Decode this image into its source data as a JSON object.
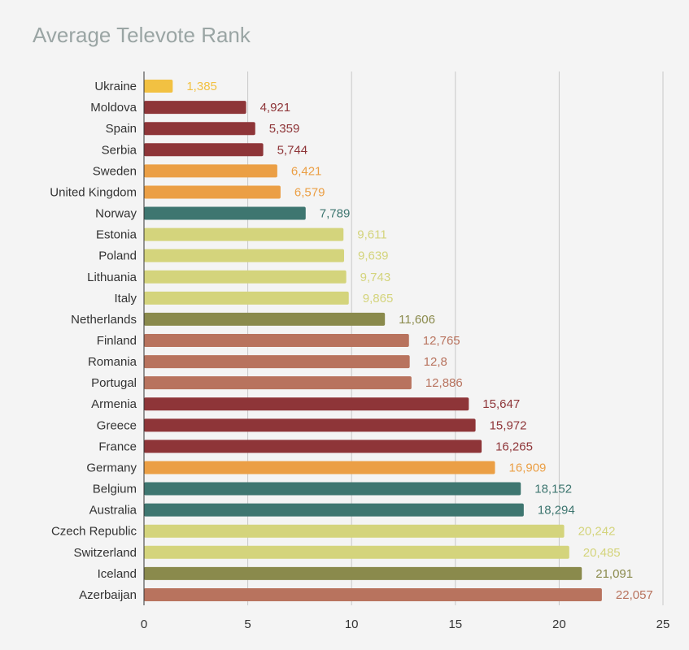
{
  "chart_data": {
    "type": "bar",
    "orientation": "horizontal",
    "title": "Average Televote Rank",
    "xlabel": "",
    "ylabel": "",
    "xlim": [
      0,
      25
    ],
    "xticks": [
      0,
      5,
      10,
      15,
      20,
      25
    ],
    "grid": "vertical",
    "categories": [
      "Ukraine",
      "Moldova",
      "Spain",
      "Serbia",
      "Sweden",
      "United Kingdom",
      "Norway",
      "Estonia",
      "Poland",
      "Lithuania",
      "Italy",
      "Netherlands",
      "Finland",
      "Romania",
      "Portugal",
      "Armenia",
      "Greece",
      "France",
      "Germany",
      "Belgium",
      "Australia",
      "Czech Republic",
      "Switzerland",
      "Iceland",
      "Azerbaijan"
    ],
    "values": [
      1.385,
      4.921,
      5.359,
      5.744,
      6.421,
      6.579,
      7.789,
      9.611,
      9.639,
      9.743,
      9.865,
      11.606,
      12.765,
      12.8,
      12.886,
      15.647,
      15.972,
      16.265,
      16.909,
      18.152,
      18.294,
      20.242,
      20.485,
      21.091,
      22.057
    ],
    "value_labels": [
      "1,385",
      "4,921",
      "5,359",
      "5,744",
      "6,421",
      "6,579",
      "7,789",
      "9,611",
      "9,639",
      "9,743",
      "9,865",
      "11,606",
      "12,765",
      "12,8",
      "12,886",
      "15,647",
      "15,972",
      "16,265",
      "16,909",
      "18,152",
      "18,294",
      "20,242",
      "20,485",
      "21,091",
      "22,057"
    ],
    "colors": [
      "#f2c142",
      "#8e3538",
      "#8e3538",
      "#8e3538",
      "#eb9f45",
      "#eb9f45",
      "#3e7670",
      "#d4d47c",
      "#d4d47c",
      "#d4d47c",
      "#d4d47c",
      "#8a8a4c",
      "#b8735e",
      "#b8735e",
      "#b8735e",
      "#8e3538",
      "#8e3538",
      "#8e3538",
      "#eb9f45",
      "#3e7670",
      "#3e7670",
      "#d4d47c",
      "#d4d47c",
      "#8a8a4c",
      "#b8735e"
    ]
  }
}
